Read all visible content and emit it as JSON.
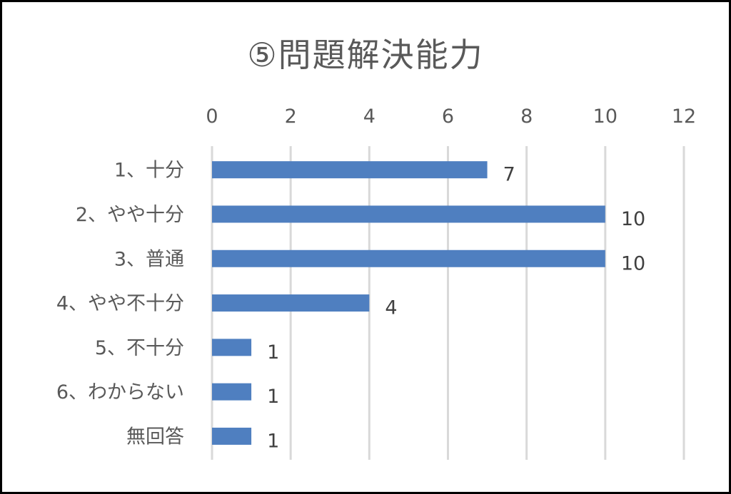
{
  "chart_data": {
    "type": "bar",
    "orientation": "horizontal",
    "title": "⑤問題解決能力",
    "categories": [
      "1、十分",
      "2、やや十分",
      "3、普通",
      "4、やや不十分",
      "5、不十分",
      "6、わからない",
      "無回答"
    ],
    "values": [
      7,
      10,
      10,
      4,
      1,
      1,
      1
    ],
    "xlim": [
      0,
      12
    ],
    "xticks": [
      "0",
      "2",
      "4",
      "6",
      "8",
      "10",
      "12"
    ],
    "axis_position": "top",
    "grid": true,
    "data_labels": true,
    "legend": "none",
    "colors": {
      "bar": "#4f7fc0",
      "grid": "#d9d9d9",
      "text": "#595959",
      "border": "#000000"
    }
  }
}
